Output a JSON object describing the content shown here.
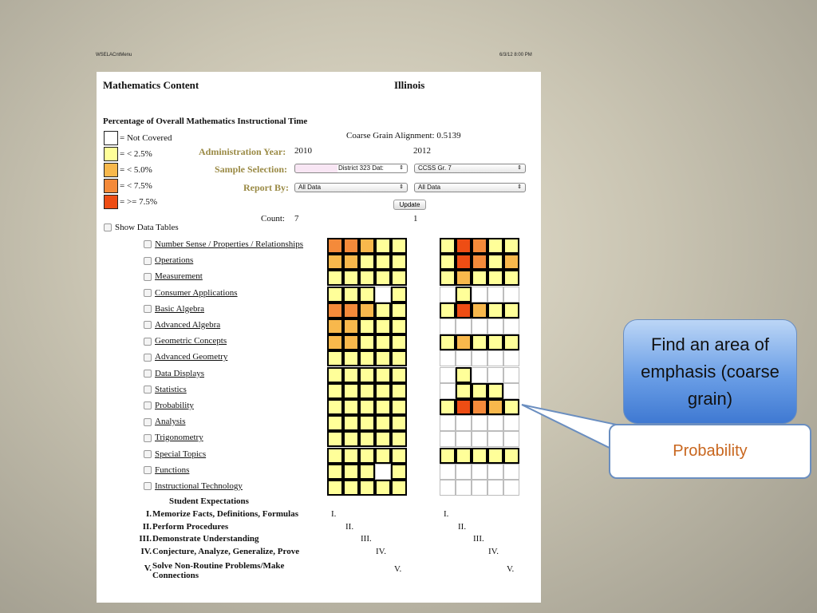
{
  "header": {
    "doc_name": "WSELACntMenu",
    "date": "6/3/12 8:00 PM"
  },
  "page": {
    "title": "Mathematics Content",
    "state": "Illinois",
    "subtitle": "Percentage of Overall Mathematics Instructional Time",
    "alignment": "Coarse Grain Alignment: 0.5139"
  },
  "legend": [
    {
      "label": "= Not Covered",
      "color": "#ffffff"
    },
    {
      "label": "= < 2.5%",
      "color": "#ffff99"
    },
    {
      "label": "= < 5.0%",
      "color": "#f8b84c"
    },
    {
      "label": "= < 7.5%",
      "color": "#f48a3a"
    },
    {
      "label": "= >= 7.5%",
      "color": "#ee4d14"
    }
  ],
  "controls": {
    "admin_year_label": "Administration Year:",
    "year_left": "2010",
    "year_right": "2012",
    "sample_label": "Sample Selection:",
    "sample_left": "District 323 Dat:",
    "sample_right": "CCSS Gr. 7",
    "report_label": "Report By:",
    "report_left": "All Data",
    "report_right": "All Data",
    "update": "Update",
    "count_label": "Count:",
    "count_left": "7",
    "count_right": "1",
    "show_tables": "Show Data Tables"
  },
  "categories": [
    "Number Sense / Properties / Relationships",
    "Operations",
    "Measurement",
    "Consumer Applications",
    "Basic Algebra",
    "Advanced Algebra",
    "Geometric Concepts",
    "Advanced Geometry",
    "Data Displays",
    "Statistics",
    "Probability",
    "Analysis",
    "Trigonometry",
    "Special Topics",
    "Functions",
    "Instructional Technology"
  ],
  "grid_left": [
    [
      3,
      3,
      2,
      1,
      1
    ],
    [
      2,
      2,
      1,
      1,
      1
    ],
    [
      1,
      1,
      1,
      1,
      1
    ],
    [
      1,
      1,
      1,
      0,
      1
    ],
    [
      3,
      3,
      2,
      1,
      1
    ],
    [
      2,
      2,
      1,
      1,
      1
    ],
    [
      2,
      2,
      1,
      1,
      1
    ],
    [
      1,
      1,
      1,
      1,
      1
    ],
    [
      1,
      1,
      1,
      1,
      1
    ],
    [
      1,
      1,
      1,
      1,
      1
    ],
    [
      1,
      1,
      1,
      1,
      1
    ],
    [
      1,
      1,
      1,
      1,
      1
    ],
    [
      1,
      1,
      1,
      1,
      1
    ],
    [
      1,
      1,
      1,
      1,
      1
    ],
    [
      1,
      1,
      1,
      0,
      1
    ],
    [
      1,
      1,
      1,
      1,
      1
    ]
  ],
  "grid_right": [
    [
      1,
      4,
      3,
      1,
      1
    ],
    [
      1,
      4,
      3,
      1,
      2
    ],
    [
      1,
      2,
      1,
      1,
      1
    ],
    [
      0,
      1,
      0,
      0,
      0
    ],
    [
      1,
      4,
      2,
      1,
      1
    ],
    [
      0,
      0,
      0,
      0,
      0
    ],
    [
      1,
      2,
      1,
      1,
      1
    ],
    [
      0,
      0,
      0,
      0,
      0
    ],
    [
      0,
      1,
      0,
      0,
      0
    ],
    [
      0,
      1,
      1,
      1,
      0
    ],
    [
      1,
      4,
      3,
      2,
      1
    ],
    [
      0,
      0,
      0,
      0,
      0
    ],
    [
      0,
      0,
      0,
      0,
      0
    ],
    [
      1,
      1,
      1,
      1,
      1
    ],
    [
      0,
      0,
      0,
      0,
      0
    ],
    [
      0,
      0,
      0,
      0,
      0
    ]
  ],
  "expectations": {
    "heading": "Student Expectations",
    "items": [
      {
        "numeral": "I.",
        "label": "Memorize Facts, Definitions, Formulas"
      },
      {
        "numeral": "II.",
        "label": "Perform Procedures"
      },
      {
        "numeral": "III.",
        "label": "Demonstrate Understanding"
      },
      {
        "numeral": "IV.",
        "label": "Conjecture, Analyze, Generalize, Prove"
      },
      {
        "numeral": "V.",
        "label": "Solve Non-Routine Problems/Make Connections"
      }
    ]
  },
  "callout": {
    "main": "Find an area of emphasis (coarse grain)",
    "answer": "Probability"
  }
}
